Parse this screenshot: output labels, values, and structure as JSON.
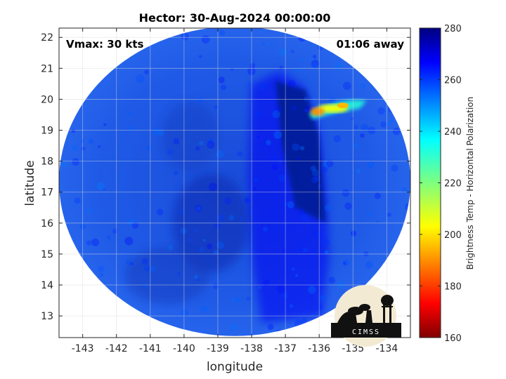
{
  "chart_data": {
    "type": "heatmap",
    "title": "Hector: 30-Aug-2024 00:00:00",
    "xlabel": "longitude",
    "ylabel": "latitude",
    "xlim": [
      -143.7,
      -133.3
    ],
    "ylim": [
      12.3,
      22.3
    ],
    "xticks": [
      -143,
      -142,
      -141,
      -140,
      -139,
      -138,
      -137,
      -136,
      -135,
      -134
    ],
    "yticks": [
      13,
      14,
      15,
      16,
      17,
      18,
      19,
      20,
      21,
      22
    ],
    "grid": true,
    "annotations": {
      "left": "Vmax: 30 kts",
      "right": "01:06 away"
    },
    "colorbar": {
      "label": "Brightness Temp - Horizontal Polarization",
      "range": [
        160,
        280
      ],
      "ticks": [
        160,
        180,
        200,
        220,
        240,
        260,
        280
      ],
      "colormap": "jet"
    },
    "swath": {
      "center": [
        -138.5,
        17.35
      ],
      "semi_axes": [
        5.2,
        5.0
      ]
    },
    "features": [
      {
        "name": "background",
        "value": 258
      },
      {
        "name": "deep convection band",
        "lon": [
          -137.5,
          -136.0
        ],
        "lat": [
          13.0,
          20.8
        ],
        "value": 268
      },
      {
        "name": "circulation center",
        "lon": -139.2,
        "lat": 16.0,
        "value": 266
      },
      {
        "name": "warm rain band",
        "lon": [
          -136.2,
          -134.7
        ],
        "lat": [
          19.4,
          19.9
        ],
        "value": 190
      }
    ],
    "logo_text": "CIMSS",
    "colors": {
      "background": "#ffffff",
      "axis": "#262626",
      "grid": "#d9d9d9"
    }
  }
}
